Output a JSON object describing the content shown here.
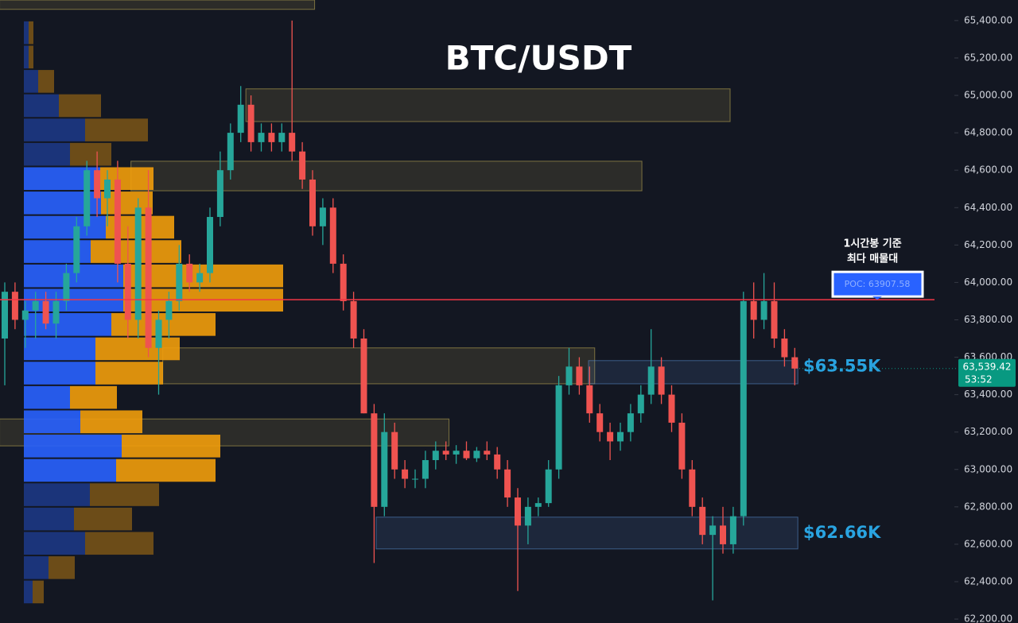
{
  "chart_data": {
    "type": "candlestick",
    "title": "BTC/USDT",
    "ylim": [
      62179,
      65510
    ],
    "yticks": [
      {
        "value": 65400,
        "label": "65,400.00"
      },
      {
        "value": 65200,
        "label": "65,200.00"
      },
      {
        "value": 65000,
        "label": "65,000.00"
      },
      {
        "value": 64800,
        "label": "64,800.00"
      },
      {
        "value": 64600,
        "label": "64,600.00"
      },
      {
        "value": 64400,
        "label": "64,400.00"
      },
      {
        "value": 64200,
        "label": "64,200.00"
      },
      {
        "value": 64000,
        "label": "64,000.00"
      },
      {
        "value": 63800,
        "label": "63,800.00"
      },
      {
        "value": 63600,
        "label": "63,600.00"
      },
      {
        "value": 63400,
        "label": "63,400.00"
      },
      {
        "value": 63200,
        "label": "63,200.00"
      },
      {
        "value": 63000,
        "label": "63,000.00"
      },
      {
        "value": 62800,
        "label": "62,800.00"
      },
      {
        "value": 62600,
        "label": "62,600.00"
      },
      {
        "value": 62400,
        "label": "62,400.00"
      },
      {
        "value": 62200,
        "label": "62,200.00"
      }
    ],
    "grid": false,
    "up_color": "#26a69a",
    "down_color": "#ef5350",
    "candles": [
      [
        63700,
        64000,
        63450,
        63950
      ],
      [
        63950,
        64000,
        63750,
        63800
      ],
      [
        63800,
        63900,
        63650,
        63850
      ],
      [
        63850,
        63950,
        63700,
        63900
      ],
      [
        63900,
        63950,
        63750,
        63780
      ],
      [
        63780,
        63950,
        63700,
        63900
      ],
      [
        63900,
        64100,
        63850,
        64050
      ],
      [
        64050,
        64350,
        64000,
        64300
      ],
      [
        64300,
        64650,
        64250,
        64600
      ],
      [
        64600,
        64700,
        64350,
        64450
      ],
      [
        64450,
        64600,
        64300,
        64550
      ],
      [
        64550,
        64650,
        64000,
        64100
      ],
      [
        64100,
        64300,
        63700,
        63800
      ],
      [
        63800,
        64450,
        63700,
        64400
      ],
      [
        64400,
        64600,
        63600,
        63650
      ],
      [
        63650,
        63850,
        63400,
        63800
      ],
      [
        63800,
        63950,
        63700,
        63900
      ],
      [
        63900,
        64200,
        63850,
        64100
      ],
      [
        64100,
        64150,
        63950,
        64000
      ],
      [
        64000,
        64100,
        63950,
        64050
      ],
      [
        64050,
        64400,
        64000,
        64350
      ],
      [
        64350,
        64700,
        64300,
        64600
      ],
      [
        64600,
        64850,
        64550,
        64800
      ],
      [
        64800,
        65050,
        64750,
        64950
      ],
      [
        64950,
        65000,
        64700,
        64750
      ],
      [
        64750,
        64850,
        64700,
        64800
      ],
      [
        64800,
        64850,
        64700,
        64750
      ],
      [
        64750,
        64850,
        64700,
        64800
      ],
      [
        64800,
        65400,
        64650,
        64700
      ],
      [
        64700,
        64750,
        64500,
        64550
      ],
      [
        64550,
        64600,
        64250,
        64300
      ],
      [
        64300,
        64450,
        64200,
        64400
      ],
      [
        64400,
        64450,
        64050,
        64100
      ],
      [
        64100,
        64150,
        63850,
        63900
      ],
      [
        63900,
        63950,
        63650,
        63700
      ],
      [
        63700,
        63750,
        63300,
        63300
      ],
      [
        63300,
        63350,
        62500,
        62800
      ],
      [
        62800,
        63300,
        62750,
        63200
      ],
      [
        63200,
        63250,
        62950,
        63000
      ],
      [
        63000,
        63050,
        62900,
        62950
      ],
      [
        62950,
        63000,
        62900,
        62950
      ],
      [
        62950,
        63100,
        62900,
        63050
      ],
      [
        63050,
        63150,
        63000,
        63100
      ],
      [
        63100,
        63150,
        63050,
        63080
      ],
      [
        63080,
        63130,
        63030,
        63100
      ],
      [
        63100,
        63150,
        63050,
        63060
      ],
      [
        63060,
        63120,
        63040,
        63100
      ],
      [
        63100,
        63150,
        63050,
        63080
      ],
      [
        63080,
        63120,
        62950,
        63000
      ],
      [
        63000,
        63050,
        62800,
        62850
      ],
      [
        62850,
        62900,
        62350,
        62700
      ],
      [
        62700,
        62850,
        62600,
        62800
      ],
      [
        62800,
        62850,
        62750,
        62820
      ],
      [
        62820,
        63050,
        62800,
        63000
      ],
      [
        63000,
        63500,
        62950,
        63450
      ],
      [
        63450,
        63650,
        63400,
        63550
      ],
      [
        63550,
        63600,
        63400,
        63450
      ],
      [
        63450,
        63550,
        63250,
        63300
      ],
      [
        63300,
        63350,
        63150,
        63200
      ],
      [
        63200,
        63250,
        63050,
        63150
      ],
      [
        63150,
        63250,
        63100,
        63200
      ],
      [
        63200,
        63350,
        63150,
        63300
      ],
      [
        63300,
        63450,
        63250,
        63400
      ],
      [
        63400,
        63750,
        63350,
        63550
      ],
      [
        63550,
        63600,
        63350,
        63400
      ],
      [
        63400,
        63450,
        63200,
        63250
      ],
      [
        63250,
        63300,
        62950,
        63000
      ],
      [
        63000,
        63050,
        62750,
        62800
      ],
      [
        62800,
        62850,
        62600,
        62650
      ],
      [
        62650,
        62750,
        62300,
        62700
      ],
      [
        62700,
        62800,
        62550,
        62600
      ],
      [
        62600,
        62800,
        62550,
        62750
      ],
      [
        62750,
        63950,
        62700,
        63900
      ],
      [
        63900,
        64000,
        63700,
        63800
      ],
      [
        63800,
        64050,
        63750,
        63900
      ],
      [
        63900,
        64000,
        63650,
        63700
      ],
      [
        63700,
        63750,
        63550,
        63600
      ],
      [
        63600,
        63650,
        63450,
        63539.42
      ]
    ],
    "zones": [
      {
        "x_start": -0.5,
        "x_end": 30.2,
        "top": 65510,
        "bottom": 65460,
        "color": "#c9b458"
      },
      {
        "x_start": 23.5,
        "x_end": 70.7,
        "top": 65035,
        "bottom": 64860,
        "color": "#c9b458"
      },
      {
        "x_start": 12.3,
        "x_end": 62.1,
        "top": 64648,
        "bottom": 64490,
        "color": "#c9b458"
      },
      {
        "x_start": 15.4,
        "x_end": 57.5,
        "top": 63650,
        "bottom": 63458,
        "color": "#c9b458"
      },
      {
        "x_start": -0.5,
        "x_end": 43.3,
        "top": 63270,
        "bottom": 63126,
        "color": "#c9b458"
      },
      {
        "x_start": 36.2,
        "x_end": 77.3,
        "top": 62745,
        "bottom": 62575,
        "color": "#5b8fd6"
      },
      {
        "x_start": 56.9,
        "x_end": 77.3,
        "top": 63582,
        "bottom": 63458,
        "color": "#5b8fd6"
      }
    ],
    "volume_profile": {
      "bin_top": 65400,
      "bin_size": 130,
      "buy": [
        6,
        6,
        18,
        44,
        77,
        58,
        96,
        97,
        103,
        84,
        125,
        125,
        110,
        90,
        90,
        58,
        71,
        123,
        116,
        83,
        63,
        77,
        31,
        11
      ],
      "sell": [
        6,
        6,
        20,
        53,
        79,
        52,
        67,
        65,
        86,
        114,
        201,
        201,
        131,
        106,
        85,
        59,
        78,
        124,
        125,
        87,
        73,
        86,
        33,
        14
      ],
      "value_area": [
        62930,
        64620
      ],
      "buy_color": "#2962ff",
      "sell_color": "#f29d0b"
    },
    "poc": {
      "value": 63907.58,
      "label": "POC: 63907.58"
    },
    "poc_note": [
      "1시간봉 기준",
      "최다 매물대"
    ],
    "levels": [
      {
        "value": 63550,
        "label": "$63.55K"
      },
      {
        "value": 62660,
        "label": "$62.66K"
      }
    ],
    "last_price": {
      "value": 63539.42,
      "label": "63,539.42"
    },
    "countdown": "53:52"
  }
}
